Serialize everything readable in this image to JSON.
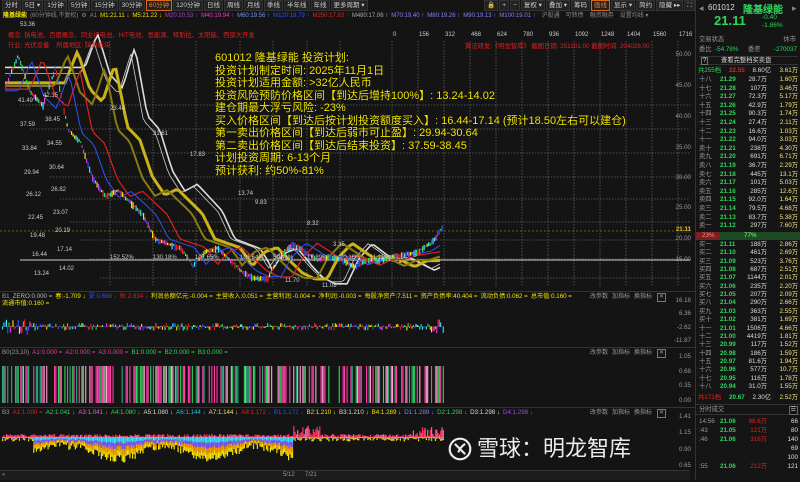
{
  "toolbar": {
    "tabs": [
      "分时",
      "5日 ▾",
      "1分钟",
      "5分钟",
      "15分钟",
      "30分钟",
      "60分钟",
      "120分钟",
      "日线",
      "周线",
      "月线",
      "季线",
      "半年线",
      "年线",
      "更多周期 ▾"
    ],
    "active": "60分钟",
    "tools": [
      "+",
      "−",
      "复权 ▾",
      "叠加 ▾",
      "筹码",
      "画线",
      "显示 ▾",
      "简约",
      "隐藏 ▸▸"
    ],
    "active_tool": "画线"
  },
  "ma_line": {
    "name": "隆基绿能",
    "period": "(60分钟线,不复权)",
    "a": "A1",
    "items": [
      {
        "t": "M1:21.11 ↓",
        "c": "#f2e600"
      },
      {
        "t": "M5:21.22 ↓",
        "c": "#f2e600"
      },
      {
        "t": "M20:20.53 ↑",
        "c": "#a040d0"
      },
      {
        "t": "M40:19.94 ↑",
        "c": "#e040c0"
      },
      {
        "t": "M60:19.56 ↑",
        "c": "#7090ff"
      },
      {
        "t": "M120:18.79 ↑",
        "c": "#3050ff"
      },
      {
        "t": "M250:17.83 ↑",
        "c": "#e02020"
      },
      {
        "t": "M480:17.06 ↑",
        "c": "#aaa"
      },
      {
        "t": "M70:19.40 ↑",
        "c": "#8080ff"
      },
      {
        "t": "M80:19.26 ↑",
        "c": "#8080ff"
      },
      {
        "t": "M90:19.13 ↑",
        "c": "#8080ff"
      },
      {
        "t": "M100:19.01 ↑",
        "c": "#8080ff"
      }
    ],
    "links": [
      "沪股通",
      "可转债",
      "融资融券",
      "设置均线 ▾"
    ]
  },
  "chart_info": {
    "concepts": "概念: 钠电池、百度概念、同业扩电池、HIT电池、氢能源、特斯拉、太阳能、西部大开发",
    "industry": "行业: 光伏设备",
    "region": "所属地区: 陕西板块",
    "credit": "算法研发:《明龙智库》 截图日期: 251101.00 截图时间: 204026.00",
    "ticks": [
      "0",
      "156",
      "312",
      "468",
      "624",
      "780",
      "936",
      "1092",
      "1248",
      "1404",
      "1560",
      "1716"
    ]
  },
  "plan": [
    "601012 隆基绿能 投资计划:",
    "投资计划制定时间: 2025年11月1日",
    "投资计划适用金额: >32亿人民币",
    "投资风险预防价格区间【到达后增持100%】: 13.24-14.02",
    "建仓期最大浮亏风险: -23%",
    "买入价格区间【到达后按计划投资额度买入】: 16.44-17.14 (预计18.50左右可以建仓)",
    "第一卖出价格区间【到达后弱市可止盈】: 29.94-30.64",
    "第二卖出价格区间【到达后结束投资】: 37.59-38.45",
    "计划投资周期: 6-13个月",
    "预计获利: 约50%-81%"
  ],
  "levels_left": [
    "41.49",
    "37.59",
    "33.84",
    "29.94",
    "26.12",
    "22.45",
    "19.48",
    "16.44",
    "13.24"
  ],
  "levels_right": [
    "42.35",
    "38.45",
    "34.55",
    "30.64",
    "26.82",
    "23.07",
    "20.19",
    "17.14",
    "14.02"
  ],
  "peaks": [
    "53.36",
    "23.44",
    "21.61",
    "17.83",
    "13.74",
    "9.83",
    "8.32",
    "3.35",
    "11.70",
    "11.08"
  ],
  "pcts": [
    "152.52%",
    "130.18%",
    "107.65%",
    "101.64%",
    "50.41%",
    "17.89%",
    "20.16%",
    "11.11%"
  ],
  "main_chart": {
    "axis": [
      "50.00",
      "45.00",
      "40.00",
      "35.00",
      "30.00",
      "25.00",
      "20.00",
      "15.00"
    ],
    "last": "21.11",
    "approx_close": [
      45,
      50,
      44,
      42,
      48,
      38,
      36,
      30,
      27,
      28,
      26,
      24,
      20,
      19,
      18,
      14,
      17,
      18,
      15,
      13,
      12,
      12,
      16,
      19,
      17,
      15,
      16,
      15,
      14,
      15,
      15,
      16,
      16.5,
      17,
      19,
      22
    ]
  },
  "b1": {
    "label": "B1",
    "items": [
      {
        "t": "ZERO:0.000 =",
        "c": "#bbb"
      },
      {
        "t": "春:-1.709 ↓",
        "c": "#f2e600"
      },
      {
        "t": "夏:0.688 ↓",
        "c": "#3050ff"
      },
      {
        "t": "秋:2.834 ↓",
        "c": "#e02020"
      },
      {
        "t": "利润总额亿元:-0.004 =",
        "c": "#f2e600"
      },
      {
        "t": "主营收入:0.051 =",
        "c": "#f2e600"
      },
      {
        "t": "主营利润:-0.004 =",
        "c": "#f2e600"
      },
      {
        "t": "净利润:-0.003 =",
        "c": "#f2e600"
      },
      {
        "t": "每股净资产:7.511 =",
        "c": "#f2e600"
      },
      {
        "t": "资产负债率:40.404 =",
        "c": "#f2e600"
      },
      {
        "t": "流动负债:0.062 =",
        "c": "#f2e600"
      },
      {
        "t": "总市值:0.160 =",
        "c": "#f2e600"
      },
      {
        "t": "流通市值:0.160 =",
        "c": "#f2e600"
      }
    ],
    "axis": [
      "16.18",
      "6.36",
      "-2.62",
      "-11.87"
    ]
  },
  "b0": {
    "label": "B0(23,10)",
    "items": [
      {
        "t": "A1:0.000 =",
        "c": "#e040a0"
      },
      {
        "t": "A2:0.000 =",
        "c": "#e040a0"
      },
      {
        "t": "A3:0.000 =",
        "c": "#e040a0"
      },
      {
        "t": "B1:0.000 =",
        "c": "#2fd65a"
      },
      {
        "t": "B2:0.000 =",
        "c": "#2fd65a"
      },
      {
        "t": "B3:0.000 =",
        "c": "#2fd65a"
      }
    ],
    "axis": [
      "1.05",
      "0.68",
      "0.35",
      "0.00"
    ]
  },
  "b3": {
    "label": "B3",
    "items": [
      {
        "t": "A1:1.000 =",
        "c": "#e02020"
      },
      {
        "t": "A2:1.041 ↓",
        "c": "#2fd65a"
      },
      {
        "t": "A3:1.041 ↓",
        "c": "#e060e0"
      },
      {
        "t": "A4:1.080 ↓",
        "c": "#2fd65a"
      },
      {
        "t": "A5:1.080 ↓",
        "c": "#ddd"
      },
      {
        "t": "A6:1.144 ↓",
        "c": "#20c0e0"
      },
      {
        "t": "A7:1.144 ↓",
        "c": "#f0e080"
      },
      {
        "t": "A8:1.172 ↓",
        "c": "#e02020"
      },
      {
        "t": "B1:1.172 ↓",
        "c": "#3050ff"
      },
      {
        "t": "B2:1.210 ↓",
        "c": "#f2e600"
      },
      {
        "t": "B3:1.210 ↓",
        "c": "#ddd"
      },
      {
        "t": "B4:1.289 ↓",
        "c": "#f2e600"
      },
      {
        "t": "D1:1.289 ↓",
        "c": "#8080ff"
      },
      {
        "t": "D2:1.298 ↓",
        "c": "#2fd65a"
      },
      {
        "t": "D3:1.298 ↓",
        "c": "#ddd"
      },
      {
        "t": "D4:1.298 ↓",
        "c": "#a040ff"
      }
    ],
    "axis": [
      "1.41",
      "1.15",
      "0.90",
      "0.65"
    ]
  },
  "panel_controls": [
    "改参数",
    "加指标",
    "换指标"
  ],
  "dates": [
    "5/12",
    "7/21"
  ],
  "quote": {
    "code": "601012",
    "name": "隆基绿能",
    "price": "21.11",
    "change": "-0.40",
    "pct": "-1.86%",
    "status_label": "交易状态",
    "status": "休市",
    "wb_label": "委比",
    "wb": "-54.78%",
    "wc_label": "委差",
    "wc": "-270037",
    "full_book": "查看完整档买卖盘",
    "sell_total": [
      "共255档",
      "22.55",
      "8.60亿",
      "3.61万"
    ],
    "sells": [
      [
        "十八",
        "21.29",
        "28.7万",
        "1.60万"
      ],
      [
        "十七",
        "21.28",
        "107万",
        "3.46万"
      ],
      [
        "十六",
        "21.27",
        "72.3万",
        "5.17万"
      ],
      [
        "十五",
        "21.26",
        "42.9万",
        "1.79万"
      ],
      [
        "十四",
        "21.25",
        "90.3万",
        "1.74万"
      ],
      [
        "十三",
        "21.24",
        "27.4万",
        "2.11万"
      ],
      [
        "十二",
        "21.23",
        "16.6万",
        "1.03万"
      ],
      [
        "十一",
        "21.22",
        "94.0万",
        "3.03万"
      ],
      [
        "卖十",
        "21.21",
        "238万",
        "4.30万"
      ],
      [
        "卖九",
        "21.20",
        "691万",
        "6.71万"
      ],
      [
        "卖八",
        "21.19",
        "36.7万",
        "2.29万"
      ],
      [
        "卖七",
        "21.18",
        "445万",
        "13.1万"
      ],
      [
        "卖六",
        "21.17",
        "101万",
        "5.03万"
      ],
      [
        "卖五",
        "21.16",
        "285万",
        "12.6万"
      ],
      [
        "卖四",
        "21.15",
        "92.0万",
        "1.64万"
      ],
      [
        "卖三",
        "21.14",
        "79.5万",
        "4.68万"
      ],
      [
        "卖二",
        "21.13",
        "83.7万",
        "5.38万"
      ],
      [
        "卖一",
        "21.12",
        "297万",
        "7.60万"
      ]
    ],
    "ratio_sell": "23%",
    "ratio_buy": "77%",
    "ratio_sell_frac": 0.23,
    "buys": [
      [
        "买一",
        "21.11",
        "188万",
        "2.86万"
      ],
      [
        "买二",
        "21.10",
        "461万",
        "2.69万"
      ],
      [
        "买三",
        "21.09",
        "523万",
        "3.76万"
      ],
      [
        "买四",
        "21.08",
        "687万",
        "2.51万"
      ],
      [
        "买五",
        "21.07",
        "1144万",
        "2.01万"
      ],
      [
        "买六",
        "21.06",
        "235万",
        "2.20万"
      ],
      [
        "买七",
        "21.05",
        "207万",
        "2.09万"
      ],
      [
        "买八",
        "21.04",
        "290万",
        "2.66万"
      ],
      [
        "买九",
        "21.03",
        "363万",
        "2.55万"
      ],
      [
        "买十",
        "21.02",
        "381万",
        "1.69万"
      ],
      [
        "十一",
        "21.01",
        "1506万",
        "4.66万"
      ],
      [
        "十二",
        "21.00",
        "4419万",
        "1.81万"
      ],
      [
        "十三",
        "20.99",
        "117万",
        "1.52万"
      ],
      [
        "十四",
        "20.98",
        "186万",
        "1.59万"
      ],
      [
        "十五",
        "20.97",
        "81.6万",
        "1.94万"
      ],
      [
        "十六",
        "20.96",
        "577万",
        "10.7万"
      ],
      [
        "十七",
        "20.95",
        "116万",
        "1.78万"
      ],
      [
        "十八",
        "20.94",
        "31.0万",
        "1.55万"
      ]
    ],
    "buy_total": [
      "共171档",
      "20.67",
      "2.30亿",
      "2.52万"
    ],
    "trades_label": "分时成交",
    "trades": [
      [
        "14:56",
        "21.06",
        "98.6万",
        "66"
      ],
      [
        ":43",
        "21.05",
        "121万",
        "80"
      ],
      [
        ":46",
        "21.06",
        "316万",
        "140"
      ],
      [
        "",
        "",
        "",
        "69"
      ],
      [
        "",
        "",
        "",
        "100"
      ],
      [
        ":55",
        "21.06",
        "212万",
        "121"
      ]
    ]
  },
  "watermark": "雪球：明龙智库",
  "colors": {
    "up": "#e02020",
    "down": "#2fd65a",
    "plan": "#f2e600",
    "bg": "#141414"
  }
}
